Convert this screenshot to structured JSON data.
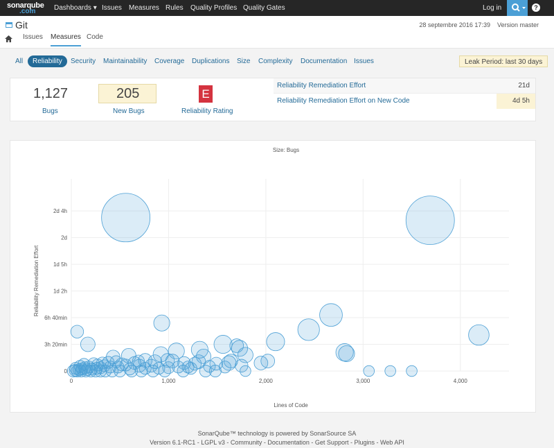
{
  "topnav": {
    "logo_main": "sonarqube",
    "logo_sub": ".com",
    "items": [
      "Dashboards ▾",
      "Issues",
      "Measures",
      "Rules",
      "Quality Profiles",
      "Quality Gates"
    ],
    "login": "Log in",
    "search_icon": "search-icon",
    "help_label": "?"
  },
  "project": {
    "title": "Git",
    "date": "28 septembre 2016 17:39",
    "version": "Version master",
    "tabs": [
      "Issues",
      "Measures",
      "Code"
    ],
    "active_tab": "Measures"
  },
  "domains": {
    "tabs": [
      "All",
      "Reliability",
      "Security",
      "Maintainability",
      "Coverage",
      "Duplications",
      "Size",
      "Complexity",
      "Documentation",
      "Issues"
    ],
    "active": "Reliability",
    "leak_period": "Leak Period: last 30 days"
  },
  "summary": {
    "bugs_value": "1,127",
    "bugs_label": "Bugs",
    "new_bugs_value": "205",
    "new_bugs_label": "New Bugs",
    "rating_value": "E",
    "rating_label": "Reliability Rating",
    "rating_color": "#d4333f",
    "remediation": [
      {
        "label": "Reliability Remediation Effort",
        "value": "21d"
      },
      {
        "label": "Reliability Remediation Effort on New Code",
        "value": "4d 5h"
      }
    ]
  },
  "chart_data": {
    "type": "scatter",
    "title": "Size: Bugs",
    "xlabel": "Lines of Code",
    "ylabel": "Reliability Remediation Effort",
    "xlim": [
      0,
      4500
    ],
    "ylim_minutes": [
      0,
      1440
    ],
    "x_ticks": [
      "0",
      "1,000",
      "2,000",
      "3,000",
      "4,000"
    ],
    "y_ticks": [
      "0",
      "3h 20min",
      "6h 40min",
      "1d 2h",
      "1d 5h",
      "2d",
      "2d 4h"
    ],
    "y_tick_minutes": [
      0,
      200,
      400,
      600,
      800,
      1000,
      1200
    ],
    "grid": true,
    "points": [
      {
        "x": 560,
        "y": 1150,
        "size": 100
      },
      {
        "x": 3690,
        "y": 1130,
        "size": 100
      },
      {
        "x": 2670,
        "y": 420,
        "size": 22
      },
      {
        "x": 2440,
        "y": 310,
        "size": 20
      },
      {
        "x": 4190,
        "y": 270,
        "size": 18
      },
      {
        "x": 2100,
        "y": 220,
        "size": 14
      },
      {
        "x": 1560,
        "y": 200,
        "size": 14
      },
      {
        "x": 2810,
        "y": 140,
        "size": 13
      },
      {
        "x": 2830,
        "y": 130,
        "size": 11
      },
      {
        "x": 1730,
        "y": 170,
        "size": 11
      },
      {
        "x": 1320,
        "y": 160,
        "size": 12
      },
      {
        "x": 1080,
        "y": 150,
        "size": 11
      },
      {
        "x": 930,
        "y": 360,
        "size": 11
      },
      {
        "x": 920,
        "y": 125,
        "size": 10
      },
      {
        "x": 1790,
        "y": 120,
        "size": 10
      },
      {
        "x": 1360,
        "y": 110,
        "size": 9
      },
      {
        "x": 1700,
        "y": 190,
        "size": 8
      },
      {
        "x": 170,
        "y": 200,
        "size": 9
      },
      {
        "x": 60,
        "y": 295,
        "size": 7
      },
      {
        "x": 590,
        "y": 115,
        "size": 9
      },
      {
        "x": 430,
        "y": 105,
        "size": 8
      },
      {
        "x": 1620,
        "y": 60,
        "size": 9
      },
      {
        "x": 1950,
        "y": 60,
        "size": 8
      },
      {
        "x": 2020,
        "y": 75,
        "size": 8
      },
      {
        "x": 1640,
        "y": 75,
        "size": 8
      },
      {
        "x": 1040,
        "y": 75,
        "size": 8
      },
      {
        "x": 1160,
        "y": 60,
        "size": 7
      },
      {
        "x": 1270,
        "y": 55,
        "size": 7
      },
      {
        "x": 1310,
        "y": 70,
        "size": 8
      },
      {
        "x": 1490,
        "y": 55,
        "size": 7
      },
      {
        "x": 1420,
        "y": 35,
        "size": 6
      },
      {
        "x": 1100,
        "y": 30,
        "size": 6
      },
      {
        "x": 1200,
        "y": 30,
        "size": 6
      },
      {
        "x": 1580,
        "y": 30,
        "size": 6
      },
      {
        "x": 1750,
        "y": 40,
        "size": 7
      },
      {
        "x": 1790,
        "y": 0,
        "size": 5
      },
      {
        "x": 3060,
        "y": 0,
        "size": 5
      },
      {
        "x": 3280,
        "y": 0,
        "size": 5
      },
      {
        "x": 3500,
        "y": 0,
        "size": 5
      },
      {
        "x": 860,
        "y": 70,
        "size": 8
      },
      {
        "x": 990,
        "y": 80,
        "size": 8
      },
      {
        "x": 760,
        "y": 80,
        "size": 8
      },
      {
        "x": 820,
        "y": 40,
        "size": 7
      },
      {
        "x": 700,
        "y": 40,
        "size": 7
      },
      {
        "x": 650,
        "y": 60,
        "size": 7
      },
      {
        "x": 520,
        "y": 50,
        "size": 7
      },
      {
        "x": 480,
        "y": 30,
        "size": 6
      },
      {
        "x": 400,
        "y": 30,
        "size": 6
      },
      {
        "x": 340,
        "y": 40,
        "size": 6
      },
      {
        "x": 300,
        "y": 25,
        "size": 6
      },
      {
        "x": 260,
        "y": 20,
        "size": 6
      },
      {
        "x": 210,
        "y": 15,
        "size": 6
      },
      {
        "x": 180,
        "y": 30,
        "size": 6
      },
      {
        "x": 140,
        "y": 25,
        "size": 6
      },
      {
        "x": 110,
        "y": 15,
        "size": 6
      },
      {
        "x": 80,
        "y": 10,
        "size": 6
      },
      {
        "x": 40,
        "y": 5,
        "size": 6
      },
      {
        "x": 20,
        "y": 0,
        "size": 6
      },
      {
        "x": 60,
        "y": 0,
        "size": 6
      },
      {
        "x": 100,
        "y": 0,
        "size": 6
      },
      {
        "x": 150,
        "y": 0,
        "size": 6
      },
      {
        "x": 200,
        "y": 0,
        "size": 6
      },
      {
        "x": 250,
        "y": 0,
        "size": 6
      },
      {
        "x": 300,
        "y": 0,
        "size": 6
      },
      {
        "x": 350,
        "y": 0,
        "size": 6
      },
      {
        "x": 420,
        "y": 0,
        "size": 6
      },
      {
        "x": 500,
        "y": 0,
        "size": 6
      },
      {
        "x": 620,
        "y": 0,
        "size": 6
      },
      {
        "x": 720,
        "y": 0,
        "size": 6
      },
      {
        "x": 840,
        "y": 0,
        "size": 6
      },
      {
        "x": 960,
        "y": 0,
        "size": 6
      },
      {
        "x": 1150,
        "y": 0,
        "size": 6
      },
      {
        "x": 1380,
        "y": 0,
        "size": 6
      },
      {
        "x": 1480,
        "y": 0,
        "size": 6
      },
      {
        "x": 130,
        "y": 50,
        "size": 6
      },
      {
        "x": 230,
        "y": 55,
        "size": 6
      },
      {
        "x": 320,
        "y": 60,
        "size": 6
      },
      {
        "x": 380,
        "y": 65,
        "size": 6
      },
      {
        "x": 460,
        "y": 70,
        "size": 6
      },
      {
        "x": 560,
        "y": 45,
        "size": 6
      },
      {
        "x": 690,
        "y": 75,
        "size": 6
      },
      {
        "x": 900,
        "y": 20,
        "size": 6
      },
      {
        "x": 1000,
        "y": 25,
        "size": 6
      },
      {
        "x": 1230,
        "y": 20,
        "size": 6
      },
      {
        "x": 90,
        "y": 35,
        "size": 6
      },
      {
        "x": 270,
        "y": 45,
        "size": 6
      },
      {
        "x": 600,
        "y": 15,
        "size": 6
      },
      {
        "x": 760,
        "y": 20,
        "size": 6
      },
      {
        "x": 45,
        "y": 20,
        "size": 6
      },
      {
        "x": 160,
        "y": 10,
        "size": 6
      }
    ]
  },
  "footer": {
    "line1": "SonarQube™ technology is powered by SonarSource SA",
    "line2": "Version 6.1-RC1 - LGPL v3 - Community - Documentation - Get Support - Plugins - Web API"
  }
}
